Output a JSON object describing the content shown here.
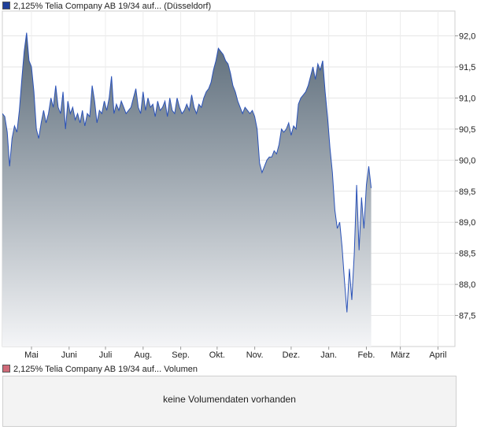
{
  "legend": {
    "price_label": "2,125% Telia Company AB 19/34 auf... (Düsseldorf)",
    "price_color": "#1f3f9a",
    "volume_label": "2,125% Telia Company AB 19/34 auf... Volumen",
    "volume_color": "#d06a78"
  },
  "volume_panel": {
    "message": "keine Volumendaten vorhanden"
  },
  "chart_data": {
    "type": "area",
    "title": "",
    "xlabel": "",
    "ylabel": "",
    "ylim": [
      87.0,
      92.4
    ],
    "y_axis_side": "right",
    "grid": true,
    "line_color": "#2a52b8",
    "fill_top_color": "#5a6a78",
    "fill_bottom_color": "#f4f5f7",
    "yticks": [
      {
        "value": 87.5,
        "label": "87,5"
      },
      {
        "value": 88.0,
        "label": "88,0"
      },
      {
        "value": 88.5,
        "label": "88,5"
      },
      {
        "value": 89.0,
        "label": "89,0"
      },
      {
        "value": 89.5,
        "label": "89,5"
      },
      {
        "value": 90.0,
        "label": "90,0"
      },
      {
        "value": 90.5,
        "label": "90,5"
      },
      {
        "value": 91.0,
        "label": "91,0"
      },
      {
        "value": 91.5,
        "label": "91,5"
      },
      {
        "value": 92.0,
        "label": "92,0"
      }
    ],
    "xticks": [
      {
        "x": 12,
        "label": "Mai"
      },
      {
        "x": 43,
        "label": "Juni"
      },
      {
        "x": 73,
        "label": "Juli"
      },
      {
        "x": 104,
        "label": "Aug."
      },
      {
        "x": 135,
        "label": "Sep."
      },
      {
        "x": 165,
        "label": "Okt."
      },
      {
        "x": 196,
        "label": "Nov."
      },
      {
        "x": 226,
        "label": "Dez."
      },
      {
        "x": 257,
        "label": "Jan."
      },
      {
        "x": 288,
        "label": "Feb."
      },
      {
        "x": 316,
        "label": "März"
      },
      {
        "x": 347,
        "label": "April"
      }
    ],
    "xlim": [
      -12,
      361
    ],
    "series": [
      {
        "points": [
          [
            -12,
            90.75
          ],
          [
            -10,
            90.7
          ],
          [
            -8,
            90.45
          ],
          [
            -6,
            89.9
          ],
          [
            -4,
            90.35
          ],
          [
            -2,
            90.55
          ],
          [
            0,
            90.45
          ],
          [
            2,
            90.8
          ],
          [
            4,
            91.3
          ],
          [
            6,
            91.75
          ],
          [
            8,
            92.05
          ],
          [
            10,
            91.6
          ],
          [
            12,
            91.5
          ],
          [
            14,
            91.1
          ],
          [
            16,
            90.5
          ],
          [
            18,
            90.35
          ],
          [
            20,
            90.6
          ],
          [
            22,
            90.8
          ],
          [
            24,
            90.6
          ],
          [
            26,
            90.75
          ],
          [
            28,
            91.0
          ],
          [
            30,
            90.85
          ],
          [
            32,
            91.2
          ],
          [
            34,
            90.85
          ],
          [
            36,
            90.75
          ],
          [
            38,
            91.1
          ],
          [
            40,
            90.5
          ],
          [
            42,
            90.95
          ],
          [
            44,
            90.75
          ],
          [
            46,
            90.85
          ],
          [
            48,
            90.65
          ],
          [
            50,
            90.75
          ],
          [
            52,
            90.6
          ],
          [
            54,
            90.8
          ],
          [
            56,
            90.55
          ],
          [
            58,
            90.75
          ],
          [
            60,
            90.7
          ],
          [
            62,
            91.2
          ],
          [
            64,
            90.95
          ],
          [
            66,
            90.6
          ],
          [
            68,
            90.8
          ],
          [
            70,
            90.75
          ],
          [
            72,
            90.95
          ],
          [
            74,
            90.8
          ],
          [
            76,
            91.0
          ],
          [
            78,
            91.35
          ],
          [
            80,
            90.75
          ],
          [
            82,
            90.9
          ],
          [
            84,
            90.8
          ],
          [
            86,
            90.95
          ],
          [
            88,
            90.85
          ],
          [
            90,
            90.75
          ],
          [
            92,
            90.8
          ],
          [
            94,
            90.85
          ],
          [
            96,
            91.0
          ],
          [
            98,
            91.15
          ],
          [
            100,
            90.85
          ],
          [
            102,
            90.75
          ],
          [
            104,
            91.1
          ],
          [
            106,
            90.8
          ],
          [
            108,
            91.0
          ],
          [
            110,
            90.85
          ],
          [
            112,
            90.9
          ],
          [
            114,
            90.7
          ],
          [
            116,
            90.95
          ],
          [
            118,
            90.8
          ],
          [
            120,
            90.85
          ],
          [
            122,
            90.95
          ],
          [
            124,
            90.7
          ],
          [
            126,
            91.0
          ],
          [
            128,
            90.8
          ],
          [
            130,
            90.75
          ],
          [
            132,
            91.0
          ],
          [
            134,
            90.85
          ],
          [
            136,
            90.75
          ],
          [
            138,
            90.8
          ],
          [
            140,
            90.9
          ],
          [
            142,
            90.8
          ],
          [
            144,
            91.05
          ],
          [
            146,
            90.85
          ],
          [
            148,
            90.75
          ],
          [
            150,
            90.9
          ],
          [
            152,
            90.85
          ],
          [
            154,
            91.0
          ],
          [
            156,
            91.1
          ],
          [
            158,
            91.15
          ],
          [
            160,
            91.25
          ],
          [
            162,
            91.45
          ],
          [
            164,
            91.6
          ],
          [
            166,
            91.8
          ],
          [
            168,
            91.75
          ],
          [
            170,
            91.7
          ],
          [
            172,
            91.6
          ],
          [
            174,
            91.55
          ],
          [
            176,
            91.4
          ],
          [
            178,
            91.2
          ],
          [
            180,
            91.1
          ],
          [
            182,
            90.95
          ],
          [
            184,
            90.85
          ],
          [
            186,
            90.75
          ],
          [
            188,
            90.85
          ],
          [
            190,
            90.8
          ],
          [
            192,
            90.75
          ],
          [
            194,
            90.8
          ],
          [
            196,
            90.7
          ],
          [
            198,
            90.5
          ],
          [
            200,
            89.95
          ],
          [
            202,
            89.8
          ],
          [
            204,
            89.9
          ],
          [
            206,
            90.0
          ],
          [
            208,
            90.05
          ],
          [
            210,
            90.05
          ],
          [
            212,
            90.15
          ],
          [
            214,
            90.1
          ],
          [
            216,
            90.25
          ],
          [
            218,
            90.5
          ],
          [
            220,
            90.45
          ],
          [
            222,
            90.5
          ],
          [
            224,
            90.6
          ],
          [
            226,
            90.4
          ],
          [
            228,
            90.55
          ],
          [
            230,
            90.5
          ],
          [
            232,
            90.9
          ],
          [
            234,
            91.0
          ],
          [
            236,
            91.05
          ],
          [
            238,
            91.1
          ],
          [
            240,
            91.2
          ],
          [
            242,
            91.35
          ],
          [
            244,
            91.5
          ],
          [
            246,
            91.3
          ],
          [
            248,
            91.55
          ],
          [
            250,
            91.45
          ],
          [
            252,
            91.6
          ],
          [
            254,
            91.1
          ],
          [
            256,
            90.7
          ],
          [
            258,
            90.2
          ],
          [
            260,
            89.8
          ],
          [
            262,
            89.2
          ],
          [
            264,
            88.9
          ],
          [
            266,
            89.0
          ],
          [
            268,
            88.6
          ],
          [
            270,
            88.05
          ],
          [
            272,
            87.55
          ],
          [
            274,
            88.25
          ],
          [
            276,
            87.75
          ],
          [
            278,
            88.5
          ],
          [
            280,
            89.6
          ],
          [
            282,
            88.55
          ],
          [
            284,
            89.4
          ],
          [
            286,
            88.9
          ],
          [
            288,
            89.6
          ],
          [
            290,
            89.9
          ],
          [
            292,
            89.55
          ]
        ]
      }
    ]
  }
}
